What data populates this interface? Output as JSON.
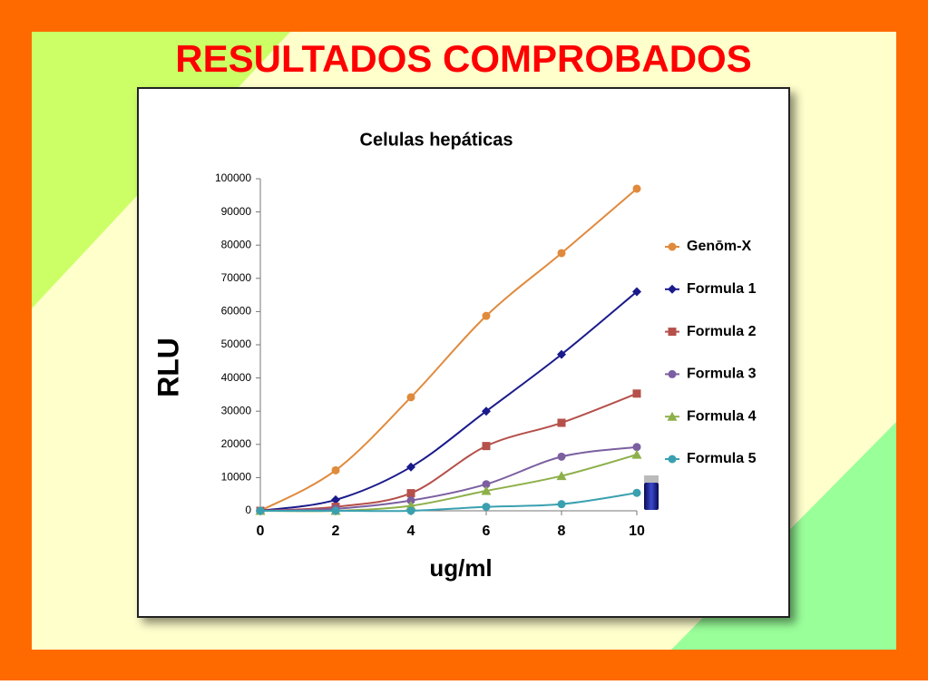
{
  "slide_title": "RESULTADOS COMPROBADOS",
  "chart_data": {
    "type": "line",
    "title": "Celulas hepáticas",
    "x_label": "ug/ml",
    "y_label": "RLU",
    "x": [
      0,
      2,
      4,
      6,
      8,
      10
    ],
    "xlim": [
      0,
      10
    ],
    "xticks": [
      0,
      2,
      4,
      6,
      8,
      10
    ],
    "ylim": [
      0,
      100000
    ],
    "yticks": [
      0,
      10000,
      20000,
      30000,
      40000,
      50000,
      60000,
      70000,
      80000,
      90000,
      100000
    ],
    "grid": false,
    "legend": "right",
    "series": [
      {
        "name": "Genōm-X",
        "color": "#e08a3c",
        "marker": "circle",
        "values": [
          0,
          12200,
          34200,
          58700,
          77600,
          97000
        ]
      },
      {
        "name": "Formula 1",
        "color": "#1a1a8c",
        "marker": "diamond",
        "values": [
          0,
          3300,
          13200,
          30000,
          47100,
          66000
        ]
      },
      {
        "name": "Formula 2",
        "color": "#b5504a",
        "marker": "square",
        "values": [
          0,
          1200,
          5300,
          19500,
          26500,
          35300
        ]
      },
      {
        "name": "Formula 3",
        "color": "#7b5fa0",
        "marker": "circle",
        "values": [
          0,
          600,
          3100,
          8000,
          16300,
          19200
        ]
      },
      {
        "name": "Formula 4",
        "color": "#8db04a",
        "marker": "triangle",
        "values": [
          0,
          0,
          1500,
          6000,
          10500,
          16900
        ]
      },
      {
        "name": "Formula 5",
        "color": "#3aa0b0",
        "marker": "circle",
        "values": [
          0,
          0,
          0,
          1200,
          2000,
          5400
        ]
      }
    ]
  }
}
